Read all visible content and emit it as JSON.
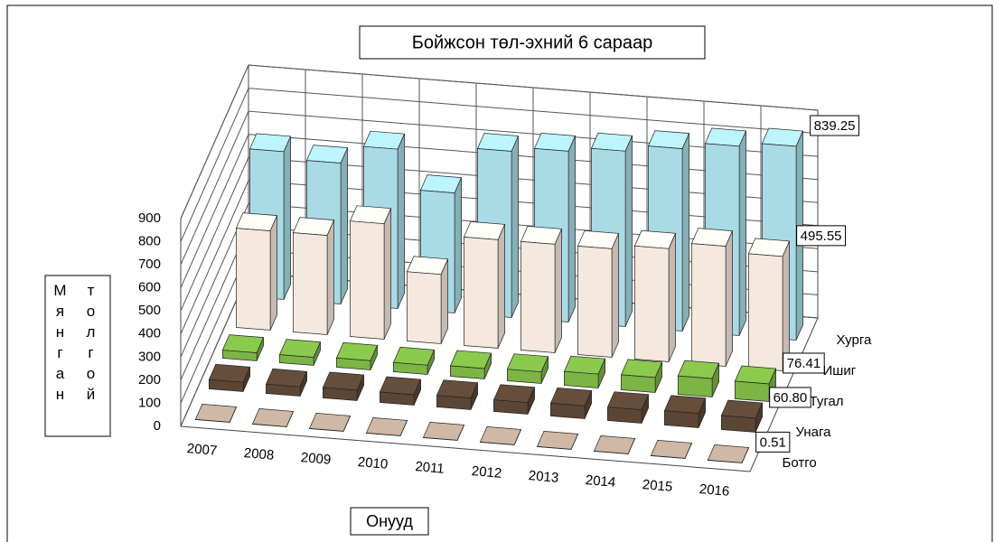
{
  "chart_data": {
    "type": "bar3d",
    "title": "Бойжсон төл-эхний 6 сараар",
    "x_label": "Онууд",
    "y_label": [
      "Мянган",
      "толгой"
    ],
    "categories": [
      "2007",
      "2008",
      "2009",
      "2010",
      "2011",
      "2012",
      "2013",
      "2014",
      "2015",
      "2016"
    ],
    "ylim": [
      0,
      900
    ],
    "yticks": [
      0,
      100,
      200,
      300,
      400,
      500,
      600,
      700,
      800,
      900
    ],
    "grid": true,
    "series": [
      {
        "name": "Хурга",
        "color": "#a9dbe6",
        "values": [
          640,
          610,
          690,
          520,
          720,
          740,
          760,
          790,
          820,
          839.25
        ],
        "value_labels": [
          null,
          null,
          null,
          null,
          null,
          null,
          null,
          null,
          null,
          "839.25"
        ]
      },
      {
        "name": "Ишиг",
        "color": "#f5e8de",
        "values": [
          430,
          430,
          500,
          300,
          470,
          470,
          470,
          490,
          520,
          495.55
        ],
        "value_labels": [
          null,
          null,
          null,
          null,
          null,
          null,
          null,
          null,
          null,
          "495.55"
        ]
      },
      {
        "name": "Тугал",
        "color": "#7db446",
        "values": [
          35,
          35,
          40,
          40,
          45,
          50,
          60,
          65,
          80,
          76.41
        ],
        "value_labels": [
          null,
          null,
          null,
          null,
          null,
          null,
          null,
          null,
          null,
          "76.41"
        ]
      },
      {
        "name": "Унага",
        "color": "#5b4636",
        "values": [
          40,
          40,
          45,
          45,
          50,
          50,
          55,
          58,
          62,
          60.8
        ],
        "value_labels": [
          null,
          null,
          null,
          null,
          null,
          null,
          null,
          null,
          null,
          "60.80"
        ]
      },
      {
        "name": "Ботго",
        "color": "#b9a493",
        "values": [
          0.45,
          0.45,
          0.46,
          0.47,
          0.48,
          0.49,
          0.5,
          0.5,
          0.51,
          0.51
        ],
        "value_labels": [
          null,
          null,
          null,
          null,
          null,
          null,
          null,
          null,
          null,
          "0.51"
        ]
      }
    ]
  }
}
